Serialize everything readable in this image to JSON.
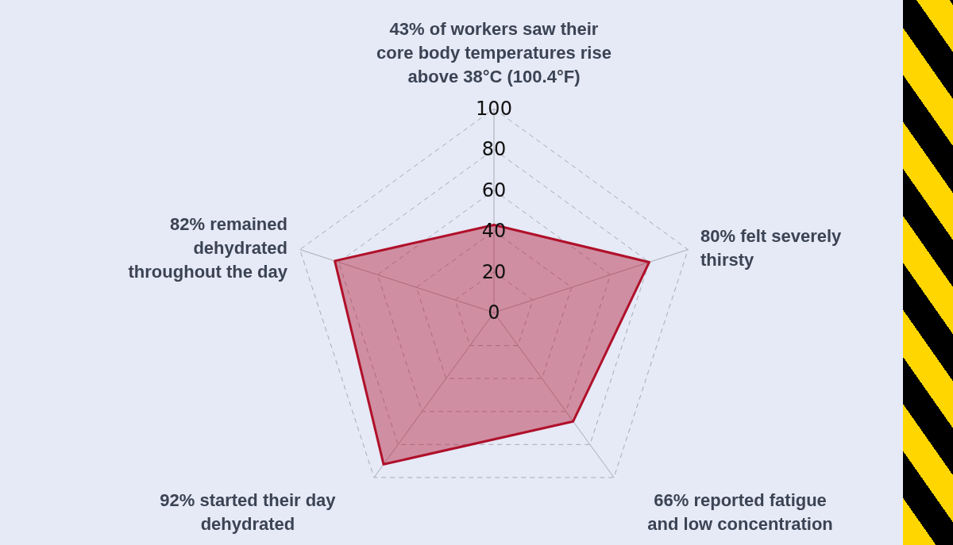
{
  "chart_data": {
    "type": "radar",
    "categories": [
      "43% of workers saw their core body temperatures rise above 38°C (100.4°F)",
      "80% felt severely thirsty",
      "66% reported fatigue and low concentration",
      "92% started their day dehydrated",
      "82% remained dehydrated throughout the day"
    ],
    "series": [
      {
        "color": "#b0102a",
        "values": [
          43,
          80,
          66,
          92,
          82
        ]
      }
    ],
    "ylim": [
      0,
      100
    ],
    "yticks": [
      0,
      20,
      40,
      60,
      80,
      100
    ],
    "grid": true
  }
}
